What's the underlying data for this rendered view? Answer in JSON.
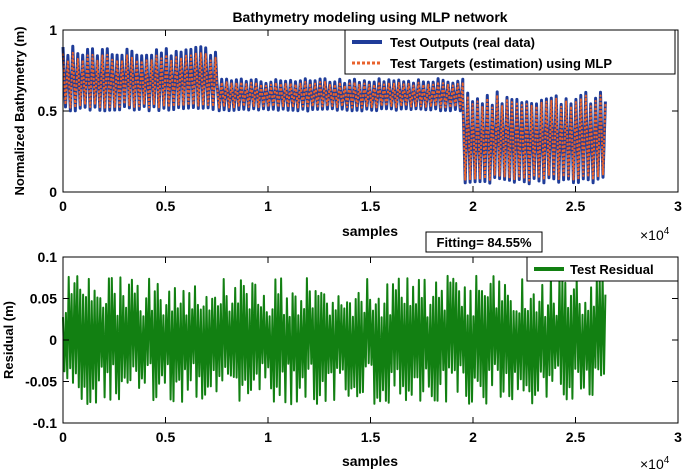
{
  "chart_data": [
    {
      "type": "line",
      "title": "Bathymetry modeling using MLP network",
      "xlabel": "samples",
      "ylabel": "Normalized Bathymetry (m)",
      "xlim": [
        0,
        30000
      ],
      "ylim": [
        0,
        1
      ],
      "x_ticks": [
        0,
        5000,
        10000,
        15000,
        20000,
        25000,
        30000
      ],
      "x_tick_labels": [
        "0",
        "0.5",
        "1",
        "1.5",
        "2",
        "2.5",
        "3"
      ],
      "x_multiplier": "×10",
      "x_multiplier_exp": "4",
      "y_ticks": [
        0,
        0.5,
        1
      ],
      "y_tick_labels": [
        "0",
        "0.5",
        "1"
      ],
      "legend_position": "top-right",
      "series": [
        {
          "name": "Test Outputs (real data)",
          "color": "#1f3c99",
          "style": "solid",
          "segments": [
            {
              "x_start": 0,
              "x_end": 7500,
              "min": 0.5,
              "max": 0.9
            },
            {
              "x_start": 7500,
              "x_end": 19500,
              "min": 0.5,
              "max": 0.7
            },
            {
              "x_start": 19500,
              "x_end": 26500,
              "min": 0.05,
              "max": 0.62
            }
          ]
        },
        {
          "name": "Test Targets (estimation) using MLP",
          "color": "#e8622c",
          "style": "dotted",
          "segments": [
            {
              "x_start": 0,
              "x_end": 7500,
              "min": 0.52,
              "max": 0.86
            },
            {
              "x_start": 7500,
              "x_end": 19500,
              "min": 0.52,
              "max": 0.68
            },
            {
              "x_start": 19500,
              "x_end": 26500,
              "min": 0.07,
              "max": 0.6
            }
          ]
        }
      ],
      "annotation": "Fitting= 84.55%"
    },
    {
      "type": "line",
      "title": "",
      "xlabel": "samples",
      "ylabel": "Residual (m)",
      "xlim": [
        0,
        30000
      ],
      "ylim": [
        -0.1,
        0.1
      ],
      "x_ticks": [
        0,
        5000,
        10000,
        15000,
        20000,
        25000,
        30000
      ],
      "x_tick_labels": [
        "0",
        "0.5",
        "1",
        "1.5",
        "2",
        "2.5",
        "3"
      ],
      "x_multiplier": "×10",
      "x_multiplier_exp": "4",
      "y_ticks": [
        -0.1,
        -0.05,
        0,
        0.05,
        0.1
      ],
      "y_tick_labels": [
        "-0.1",
        "-0.05",
        "0",
        "0.05",
        "0.1"
      ],
      "legend_position": "top-right",
      "series": [
        {
          "name": "Test Residual",
          "color": "#128012",
          "style": "solid",
          "x_end": 26500,
          "amplitude": 0.078
        }
      ]
    }
  ]
}
